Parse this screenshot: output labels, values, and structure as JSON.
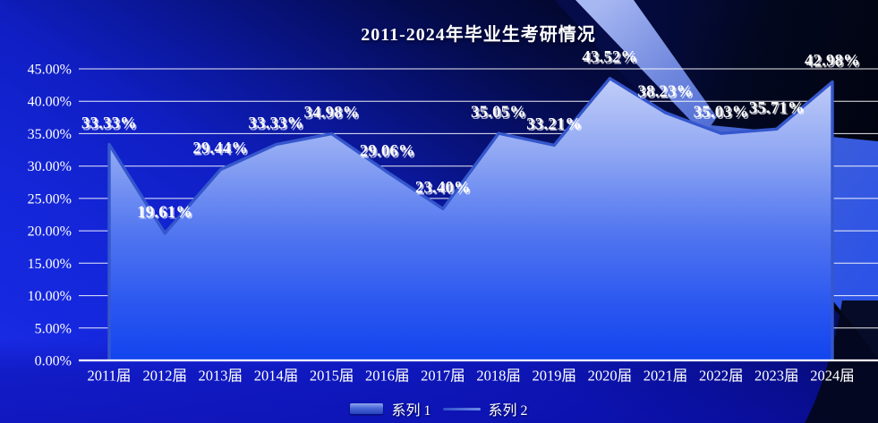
{
  "chart_data": {
    "type": "area",
    "title": "2011-2024年毕业生考研情况",
    "categories": [
      "2011届",
      "2012届",
      "2013届",
      "2014届",
      "2015届",
      "2016届",
      "2017届",
      "2018届",
      "2019届",
      "2020届",
      "2021届",
      "2022届",
      "2023届",
      "2024届"
    ],
    "series": [
      {
        "name": "系列 1",
        "type": "area",
        "values": [
          33.33,
          19.61,
          29.44,
          33.33,
          34.98,
          29.06,
          23.4,
          35.05,
          33.21,
          43.52,
          38.23,
          35.03,
          35.71,
          42.98
        ]
      },
      {
        "name": "系列 2",
        "type": "line",
        "values": [
          33.33,
          19.61,
          29.44,
          33.33,
          34.98,
          29.06,
          23.4,
          35.05,
          33.21,
          43.52,
          38.23,
          35.03,
          35.71,
          42.98
        ]
      }
    ],
    "data_labels": [
      "33.33%",
      "19.61%",
      "29.44%",
      "33.33%",
      "34.98%",
      "29.06%",
      "23.40%",
      "35.05%",
      "33.21%",
      "43.52%",
      "38.23%",
      "35.03%",
      "35.71%",
      "42.98%"
    ],
    "y_ticks": [
      "0.00%",
      "5.00%",
      "10.00%",
      "15.00%",
      "20.00%",
      "25.00%",
      "30.00%",
      "35.00%",
      "40.00%",
      "45.00%"
    ],
    "ylim": [
      0,
      45
    ],
    "xlabel": "",
    "ylabel": "",
    "grid": true,
    "legend_position": "bottom",
    "colors": {
      "background_bright": "#1426d8",
      "background_dark_corner": "#01030f",
      "ribbon": "#8fa4ea",
      "area_top": "#c6d1f9",
      "area_bottom": "#1244ee",
      "line": "#3557cd",
      "grid": "#ffffff",
      "text": "#ffffff"
    }
  }
}
